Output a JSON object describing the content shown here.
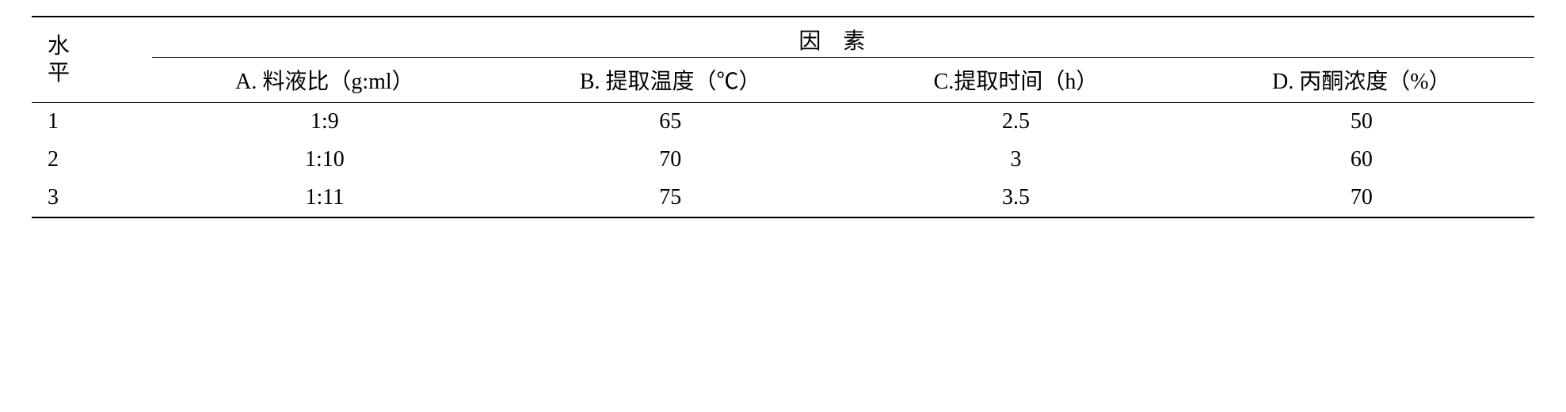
{
  "table": {
    "type": "table",
    "background_color": "#ffffff",
    "rule_color": "#000000",
    "text_color": "#000000",
    "font_size_pt": 16,
    "level_header_line1": "水",
    "level_header_line2": "平",
    "factors_header": "因素",
    "columns": {
      "A": "A. 料液比（g:ml）",
      "B": "B. 提取温度（℃）",
      "C": "C.提取时间（h）",
      "D": "D. 丙酮浓度（%）"
    },
    "rows": [
      {
        "level": "1",
        "A": "1:9",
        "B": "65",
        "C": "2.5",
        "D": "50"
      },
      {
        "level": "2",
        "A": "1:10",
        "B": "70",
        "C": "3",
        "D": "60"
      },
      {
        "level": "3",
        "A": "1:11",
        "B": "75",
        "C": "3.5",
        "D": "70"
      }
    ]
  }
}
